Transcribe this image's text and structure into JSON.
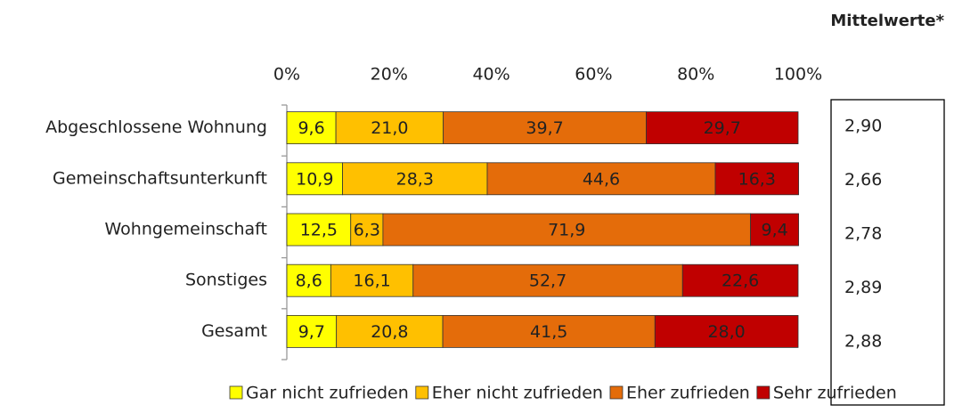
{
  "chart_data": {
    "type": "stacked_barh",
    "categories": [
      "Abgeschlossene Wohnung",
      "Gemeinschaftsunterkunft",
      "Wohngemeinschaft",
      "Sonstiges",
      "Gesamt"
    ],
    "series": [
      {
        "name": "Gar nicht zufrieden",
        "color": "#ffff00",
        "values": [
          9.6,
          10.9,
          12.5,
          8.6,
          9.7
        ],
        "value_labels": [
          "9,6",
          "10,9",
          "12,5",
          "8,6",
          "9,7"
        ]
      },
      {
        "name": "Eher nicht zufrieden",
        "color": "#ffc000",
        "values": [
          21.0,
          28.3,
          6.3,
          16.1,
          20.8
        ],
        "value_labels": [
          "21,0",
          "28,3",
          "6,3",
          "16,1",
          "20,8"
        ]
      },
      {
        "name": "Eher zufrieden",
        "color": "#e46c0a",
        "values": [
          39.7,
          44.6,
          71.9,
          52.7,
          41.5
        ],
        "value_labels": [
          "39,7",
          "44,6",
          "71,9",
          "52,7",
          "41,5"
        ]
      },
      {
        "name": "Sehr zufrieden",
        "color": "#c00000",
        "values": [
          29.7,
          16.3,
          9.4,
          22.6,
          28.0
        ],
        "value_labels": [
          "29,7",
          "16,3",
          "9,4",
          "22,6",
          "28,0"
        ]
      }
    ],
    "xlim": [
      0,
      100
    ],
    "xticks": [
      {
        "value": 0,
        "label": "0%"
      },
      {
        "value": 20,
        "label": "20%"
      },
      {
        "value": 40,
        "label": "40%"
      },
      {
        "value": 60,
        "label": "60%"
      },
      {
        "value": 80,
        "label": "80%"
      },
      {
        "value": 100,
        "label": "100%"
      }
    ],
    "legend": "bottom",
    "side_title": "Mittelwerte*",
    "side_values": [
      "2,90",
      "2,66",
      "2,78",
      "2,89",
      "2,88"
    ]
  }
}
